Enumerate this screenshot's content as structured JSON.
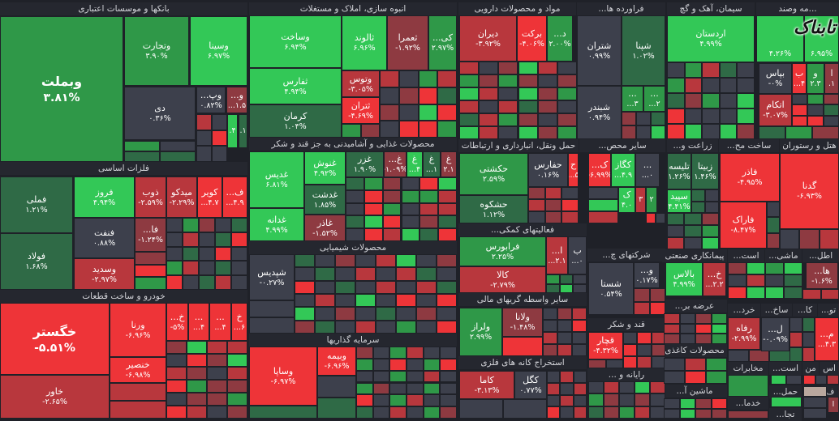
{
  "colors": {
    "G3": "#33c857",
    "G2": "#2f9848",
    "G1": "#2f6a46",
    "N": "#3d404c",
    "R1": "#8e3a41",
    "R2": "#b8373d",
    "R3": "#ee3438",
    "BG": "#1f2128"
  },
  "logo": "تابناک",
  "sectors": {
    "banks": {
      "title": "بانکها و موسسات اعتباری",
      "tiles": [
        {
          "symbol": "وبملت",
          "change": "۳.۸۱%"
        },
        {
          "symbol": "وتجارت",
          "change": "۳.۹۰%"
        },
        {
          "symbol": "وسینا",
          "change": "۶.۹۷%"
        },
        {
          "symbol": "دی",
          "change": "۰.۳۶%"
        },
        {
          "symbol": "وپ...",
          "change": "۰.۸۲%"
        },
        {
          "symbol": "و...",
          "change": "...۱.۵"
        },
        {
          "symbol": "",
          "change": ".۴"
        },
        {
          "symbol": "",
          "change": ".۱"
        }
      ]
    },
    "metals": {
      "title": "فلزات اساسی",
      "tiles": [
        {
          "symbol": "فملی",
          "change": "۱.۲۱%"
        },
        {
          "symbol": "فولاد",
          "change": "۱.۶۸%"
        },
        {
          "symbol": "فروز",
          "change": "۴.۹۴%"
        },
        {
          "symbol": "فنفت",
          "change": "۰.۸۸%"
        },
        {
          "symbol": "وسدید",
          "change": "-۲.۹۷%"
        },
        {
          "symbol": "ذوب",
          "change": "-۲.۵۹%"
        },
        {
          "symbol": "میدکو",
          "change": "-۲.۲۹%"
        },
        {
          "symbol": "کویر",
          "change": "...۴.۷"
        },
        {
          "symbol": "ف...",
          "change": "...۴.۹"
        },
        {
          "symbol": "فا...",
          "change": "-۱.۲۴%"
        }
      ]
    },
    "auto": {
      "title": "خودرو و ساخت قطعات",
      "tiles": [
        {
          "symbol": "خگستر",
          "change": "-۵.۵۱%"
        },
        {
          "symbol": "خاور",
          "change": "-۲.۶۵%"
        },
        {
          "symbol": "ورنا",
          "change": "-۶.۹۶%"
        },
        {
          "symbol": "خنصیر",
          "change": "-۶.۹۸%"
        },
        {
          "symbol": "خ...",
          "change": "-۵%"
        },
        {
          "symbol": "...",
          "change": "...۴"
        },
        {
          "symbol": "...",
          "change": "...۴"
        },
        {
          "symbol": "خ",
          "change": "...۶"
        }
      ]
    },
    "construction": {
      "title": "انبوه سازی، املاک و مستغلات",
      "tiles": [
        {
          "symbol": "وساخت",
          "change": "۶.۹۴%"
        },
        {
          "symbol": "ثالوند",
          "change": "۶.۹۶%"
        },
        {
          "symbol": "ثعمرا",
          "change": "-۱.۹۲%"
        },
        {
          "symbol": "کی...",
          "change": "۲.۹۷%"
        },
        {
          "symbol": "ثفارس",
          "change": "۴.۹۴%"
        },
        {
          "symbol": "کرمان",
          "change": "۱.۰۴%"
        },
        {
          "symbol": "وتوس",
          "change": "-۳.۰۵%"
        },
        {
          "symbol": "ثتران",
          "change": "-۴.۶۹%"
        }
      ]
    },
    "food": {
      "title": "محصولات غذایی و آشامیدنی به جز قند و شکر",
      "tiles": [
        {
          "symbol": "غدیس",
          "change": "۶.۸۱%"
        },
        {
          "symbol": "غدانه",
          "change": "۴.۹۹%"
        },
        {
          "symbol": "غنوش",
          "change": "۴.۹۲%"
        },
        {
          "symbol": "غدشت",
          "change": "۱.۸۵%"
        },
        {
          "symbol": "غاذر",
          "change": "-۱.۵۲%"
        },
        {
          "symbol": "غزر",
          "change": "۱.۹۰%"
        },
        {
          "symbol": "غ...",
          "change": "-۱.۰۹%"
        },
        {
          "symbol": "غ",
          "change": "...۴"
        },
        {
          "symbol": "غ",
          "change": "...۱"
        },
        {
          "symbol": "غ",
          "change": "۲.۱"
        }
      ]
    },
    "chemicals": {
      "title": "محصولات شیمیایی",
      "tiles": [
        {
          "symbol": "شپدیس",
          "change": "-۰.۲۷%"
        }
      ]
    },
    "investment": {
      "title": "سرمایه گذاریها",
      "tiles": [
        {
          "symbol": "وساپا",
          "change": "-۶.۹۷%"
        },
        {
          "symbol": "وبیمه",
          "change": "-۶.۹۶%"
        }
      ]
    },
    "pharma": {
      "title": "مواد و محصولات دارویی",
      "tiles": [
        {
          "symbol": "دیران",
          "change": "-۳.۹۲%"
        },
        {
          "symbol": "برکت",
          "change": "-۴.۰۶%"
        },
        {
          "symbol": "د...",
          "change": "۲.۰۰%"
        }
      ]
    },
    "refinery": {
      "title": "فراورده ها...",
      "tiles": [
        {
          "symbol": "شتران",
          "change": "۰.۹۹%"
        },
        {
          "symbol": "شپنا",
          "change": "۱.۰۲%"
        },
        {
          "symbol": "شبندر",
          "change": "۰.۹۴%"
        },
        {
          "symbol": "...",
          "change": "...۳"
        },
        {
          "symbol": "...",
          "change": "...۲"
        }
      ]
    },
    "transport": {
      "title": "حمل ونقل، انبارداری و ارتباطات",
      "tiles": [
        {
          "symbol": "حکشتی",
          "change": "۲.۵۹%"
        },
        {
          "symbol": "حشکوه",
          "change": "۱.۱۲%"
        },
        {
          "symbol": "حفارس",
          "change": "۰.۱۶%"
        },
        {
          "symbol": "ح",
          "change": "...۵"
        }
      ]
    },
    "other_products": {
      "title": "سایر محص...",
      "tiles": [
        {
          "symbol": "ک...",
          "change": "-۶.۹۹%"
        },
        {
          "symbol": "کگاز",
          "change": "...۴.۹"
        },
        {
          "symbol": "...",
          "change": "...۰"
        },
        {
          "symbol": "ک",
          "change": "۴.۰"
        },
        {
          "symbol": "",
          "change": "۳"
        },
        {
          "symbol": "",
          "change": "۲"
        }
      ]
    },
    "support": {
      "title": "فعالیتهای کمکی...",
      "tiles": [
        {
          "symbol": "فرابورس",
          "change": "۲.۲۵%"
        },
        {
          "symbol": "کالا",
          "change": "-۲.۷۹%"
        },
        {
          "symbol": "ا...",
          "change": "...۲.۱"
        },
        {
          "symbol": "ب",
          "change": "...۰"
        }
      ]
    },
    "financial": {
      "title": "سایر واسطه گریهای مالی",
      "tiles": [
        {
          "symbol": "ولراز",
          "change": "۲.۹۹%"
        },
        {
          "symbol": "ولانا",
          "change": "-۱.۴۸%"
        }
      ]
    },
    "mining": {
      "title": "استخراج کانه های فلزی",
      "tiles": [
        {
          "symbol": "کاما",
          "change": "-۳.۱۳%"
        },
        {
          "symbol": "کگل",
          "change": "۰.۷۷%"
        }
      ]
    },
    "holdings": {
      "title": "شرکتهای چ...",
      "tiles": [
        {
          "symbol": "شستا",
          "change": "۰.۵۴%"
        },
        {
          "symbol": "و...",
          "change": "۰.۱۷%"
        }
      ]
    },
    "sugar": {
      "title": "قند و شکر",
      "tiles": [
        {
          "symbol": "قچار",
          "change": "-۴.۳۲%"
        }
      ]
    },
    "computer": {
      "title": "رایانه و ...",
      "tiles": []
    },
    "cement": {
      "title": "سیمان، آهک و گچ",
      "tiles": [
        {
          "symbol": "اردستان",
          "change": "۴.۹۹%"
        }
      ]
    },
    "multi": {
      "title": "...مه وصند",
      "tiles": [
        {
          "symbol": "",
          "change": "۴.۲۶%"
        },
        {
          "symbol": "",
          "change": "۶.۹۵%"
        },
        {
          "symbol": "بپاس",
          "change": "-۰%"
        },
        {
          "symbol": "ب",
          "change": "...۴"
        },
        {
          "symbol": "و",
          "change": "۲.۳"
        },
        {
          "symbol": "ا",
          "change": ".۱"
        },
        {
          "symbol": "اتکام",
          "change": "-۳.۰۷%"
        }
      ]
    },
    "agriculture": {
      "title": "زراعت و...",
      "tiles": [
        {
          "symbol": "تلیسه",
          "change": "۱.۲۶%"
        },
        {
          "symbol": "زبیتا",
          "change": "۱.۴۶%"
        },
        {
          "symbol": "سپید",
          "change": "۴.۴۱%"
        }
      ]
    },
    "metal_products": {
      "title": "ساخت مح...",
      "tiles": [
        {
          "symbol": "فاذر",
          "change": "-۴.۹۵%"
        },
        {
          "symbol": "فاراک",
          "change": "-۸.۴۷%"
        }
      ]
    },
    "hotel": {
      "title": "هتل و رستوران",
      "tiles": [
        {
          "symbol": "گدنا",
          "change": "-۶.۹۳%"
        }
      ]
    },
    "contracting": {
      "title": "پیمانکاری صنعتی",
      "tiles": [
        {
          "symbol": "بالاس",
          "change": "۴.۹۹%"
        },
        {
          "symbol": "خ...",
          "change": "...۲.۲"
        }
      ]
    },
    "supply": {
      "title": "عرضه بر...",
      "tiles": []
    },
    "paper": {
      "title": "محصولات کاغذی",
      "tiles": []
    },
    "machinery": {
      "title": "ماشین آ...",
      "tiles": []
    },
    "ast": {
      "title": "است...",
      "tiles": []
    },
    "mashi": {
      "title": "ماشی...",
      "tiles": []
    },
    "atl": {
      "title": "اطل...",
      "tiles": [
        {
          "symbol": "ها...",
          "change": "-۱.۶%"
        }
      ]
    },
    "khord": {
      "title": "خرد...",
      "tiles": [
        {
          "symbol": "رفاه",
          "change": "-۲.۹۹%"
        }
      ]
    },
    "sakh": {
      "title": "ساخ...",
      "tiles": [
        {
          "symbol": "ل...",
          "change": "-۰.۰۹%"
        }
      ]
    },
    "ka": {
      "title": "کا...",
      "tiles": []
    },
    "to": {
      "title": "تو...",
      "tiles": [
        {
          "symbol": "م...",
          "change": "...۴.۳"
        }
      ]
    },
    "telecom": {
      "title": "مخابرات",
      "tiles": []
    },
    "ast2": {
      "title": "است...",
      "tiles": []
    },
    "men": {
      "title": "من",
      "tiles": []
    },
    "as": {
      "title": "اس",
      "tiles": []
    },
    "haml": {
      "title": "حمل...",
      "tiles": []
    },
    "khadama": {
      "title": "خدما...",
      "tiles": []
    },
    "teja": {
      "title": "تجا...",
      "tiles": []
    },
    "f": {
      "title": "ف",
      "tiles": [
        {
          "symbol": "",
          "change": "ا"
        }
      ]
    }
  }
}
